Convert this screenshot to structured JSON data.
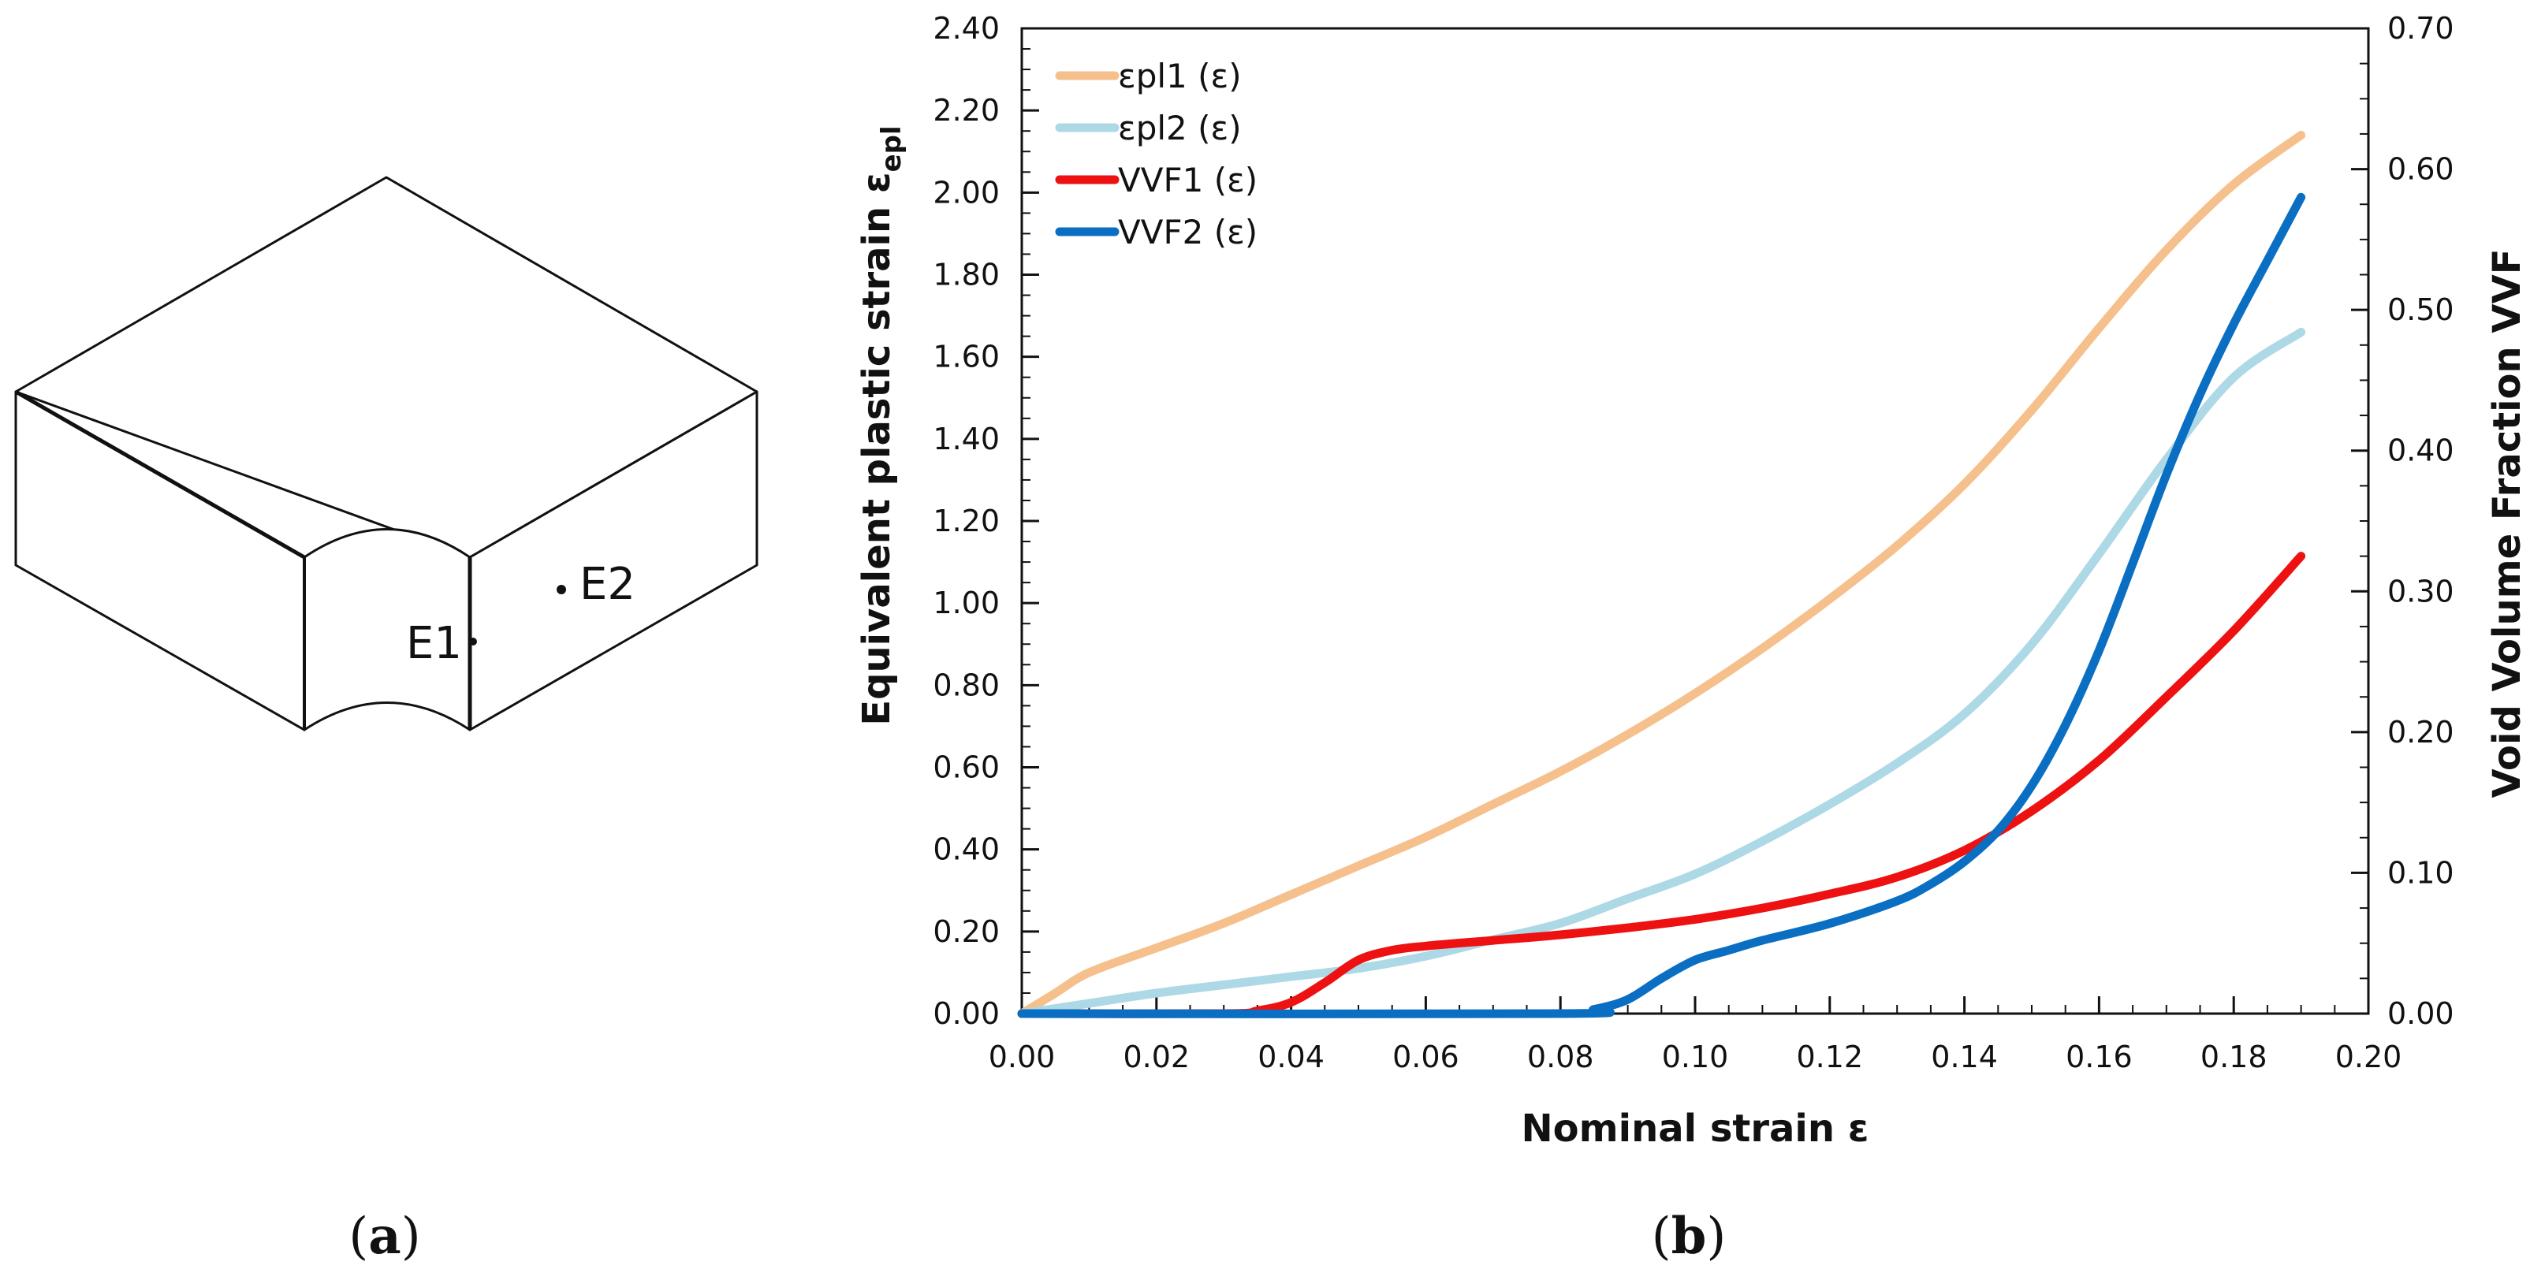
{
  "panel_a": {
    "label_open": "(",
    "label_letter": "a",
    "label_close": ")",
    "points": [
      {
        "name": "E1",
        "label": "E1"
      },
      {
        "name": "E2",
        "label": "E2"
      }
    ]
  },
  "panel_b": {
    "label_open": "(",
    "label_letter": "b",
    "label_close": ")"
  },
  "chart_data": {
    "type": "line",
    "title": "",
    "xlabel": "Nominal strain  ε",
    "ylabel": "Equivalent plastic strain  ε",
    "ylabel_sub": "epl",
    "y2label": "Void Volume Fraction  VVF",
    "xlim": [
      0,
      0.2
    ],
    "ylim": [
      0,
      2.4
    ],
    "y2lim": [
      0,
      0.7
    ],
    "xticks": [
      "0.00",
      "0.02",
      "0.04",
      "0.06",
      "0.08",
      "0.10",
      "0.12",
      "0.14",
      "0.16",
      "0.18",
      "0.20"
    ],
    "yticks": [
      "0.00",
      "0.20",
      "0.40",
      "0.60",
      "0.80",
      "1.00",
      "1.20",
      "1.40",
      "1.60",
      "1.80",
      "2.00",
      "2.20",
      "2.40"
    ],
    "y2ticks": [
      "0.00",
      "0.10",
      "0.20",
      "0.30",
      "0.40",
      "0.50",
      "0.60",
      "0.70"
    ],
    "legend_position": "top-left",
    "series": [
      {
        "name": "εpl1 (ε)",
        "axis": "left",
        "color": "#f5c08c",
        "x": [
          0,
          0.005,
          0.01,
          0.02,
          0.03,
          0.04,
          0.05,
          0.06,
          0.07,
          0.08,
          0.09,
          0.1,
          0.11,
          0.12,
          0.13,
          0.14,
          0.15,
          0.16,
          0.17,
          0.18,
          0.19
        ],
        "y": [
          0,
          0.05,
          0.1,
          0.16,
          0.22,
          0.29,
          0.36,
          0.43,
          0.51,
          0.59,
          0.68,
          0.78,
          0.89,
          1.01,
          1.14,
          1.29,
          1.47,
          1.67,
          1.86,
          2.02,
          2.14
        ]
      },
      {
        "name": "εpl2 (ε)",
        "axis": "left",
        "color": "#add8e6",
        "x": [
          0,
          0.01,
          0.02,
          0.03,
          0.04,
          0.05,
          0.06,
          0.07,
          0.08,
          0.09,
          0.1,
          0.11,
          0.12,
          0.13,
          0.14,
          0.15,
          0.16,
          0.17,
          0.18,
          0.19
        ],
        "y": [
          0,
          0.025,
          0.05,
          0.07,
          0.09,
          0.11,
          0.14,
          0.18,
          0.22,
          0.28,
          0.34,
          0.42,
          0.51,
          0.61,
          0.73,
          0.9,
          1.12,
          1.35,
          1.55,
          1.66
        ]
      },
      {
        "name": "VVF1 (ε)",
        "axis": "right",
        "color": "#ee1111",
        "x": [
          0,
          0.03,
          0.035,
          0.04,
          0.045,
          0.05,
          0.055,
          0.06,
          0.07,
          0.08,
          0.09,
          0.1,
          0.11,
          0.12,
          0.13,
          0.14,
          0.15,
          0.16,
          0.17,
          0.18,
          0.19
        ],
        "y": [
          0,
          0,
          0.002,
          0.008,
          0.022,
          0.038,
          0.045,
          0.048,
          0.052,
          0.056,
          0.061,
          0.067,
          0.075,
          0.085,
          0.097,
          0.116,
          0.144,
          0.18,
          0.225,
          0.272,
          0.325
        ]
      },
      {
        "name": "VVF2 (ε)",
        "axis": "right",
        "color": "#0a6fc2",
        "x": [
          0,
          0.08,
          0.085,
          0.09,
          0.095,
          0.1,
          0.105,
          0.11,
          0.12,
          0.13,
          0.135,
          0.14,
          0.145,
          0.15,
          0.155,
          0.16,
          0.165,
          0.17,
          0.175,
          0.18,
          0.185,
          0.19
        ],
        "y": [
          0,
          0,
          0.003,
          0.01,
          0.025,
          0.038,
          0.045,
          0.052,
          0.064,
          0.08,
          0.092,
          0.108,
          0.13,
          0.162,
          0.205,
          0.258,
          0.32,
          0.383,
          0.44,
          0.49,
          0.535,
          0.58
        ]
      }
    ]
  }
}
